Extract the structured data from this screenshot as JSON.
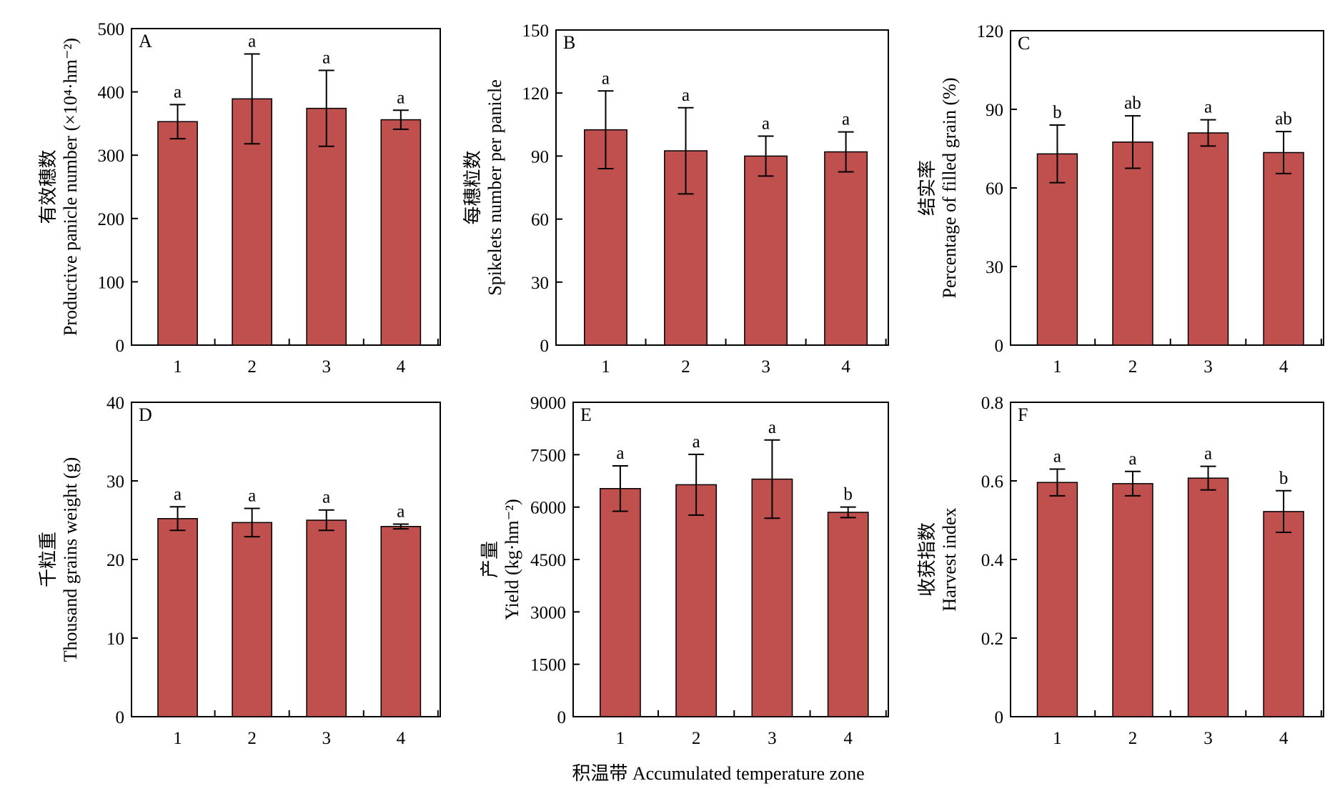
{
  "figure": {
    "shared_xlabel": "积温带 Accumulated temperature zone",
    "bar_color": "#C0504D"
  },
  "chart_data": [
    {
      "type": "bar",
      "panel_label": "A",
      "ylabel_cn": "有效穗数",
      "ylabel_en": "Productive panicle number (×10⁴·hm⁻²)",
      "categories": [
        "1",
        "2",
        "3",
        "4"
      ],
      "values": [
        353,
        389,
        374,
        356
      ],
      "error": [
        27,
        71,
        60,
        15
      ],
      "sig_labels": [
        "a",
        "a",
        "a",
        "a"
      ],
      "ylim": [
        0,
        500
      ],
      "yticks": [
        0,
        100,
        200,
        300,
        400,
        500
      ],
      "ytick_labels": [
        "0",
        "100",
        "200",
        "300",
        "400",
        "500"
      ]
    },
    {
      "type": "bar",
      "panel_label": "B",
      "ylabel_cn": "每穗粒数",
      "ylabel_en": "Spikelets number per panicle",
      "categories": [
        "1",
        "2",
        "3",
        "4"
      ],
      "values": [
        102.5,
        92.5,
        90,
        92
      ],
      "error": [
        18.5,
        20.5,
        9.5,
        9.5
      ],
      "sig_labels": [
        "a",
        "a",
        "a",
        "a"
      ],
      "ylim": [
        0,
        150
      ],
      "yticks": [
        0,
        30,
        60,
        90,
        120,
        150
      ],
      "ytick_labels": [
        "0",
        "30",
        "60",
        "90",
        "120",
        "150"
      ]
    },
    {
      "type": "bar",
      "panel_label": "C",
      "ylabel_cn": "结实率",
      "ylabel_en": "Percentage of filled grain (%)",
      "categories": [
        "1",
        "2",
        "3",
        "4"
      ],
      "values": [
        73,
        77.5,
        81,
        73.5
      ],
      "error": [
        11,
        10,
        5,
        8
      ],
      "sig_labels": [
        "b",
        "ab",
        "a",
        "ab"
      ],
      "ylim": [
        0,
        120
      ],
      "yticks": [
        0,
        30,
        60,
        90,
        120
      ],
      "ytick_labels": [
        "0",
        "30",
        "60",
        "90",
        "120"
      ]
    },
    {
      "type": "bar",
      "panel_label": "D",
      "ylabel_cn": "千粒重",
      "ylabel_en": "Thousand grains weight (g)",
      "categories": [
        "1",
        "2",
        "3",
        "4"
      ],
      "values": [
        25.2,
        24.7,
        25,
        24.2
      ],
      "error": [
        1.5,
        1.8,
        1.3,
        0.3
      ],
      "sig_labels": [
        "a",
        "a",
        "a",
        "a"
      ],
      "ylim": [
        0,
        40
      ],
      "yticks": [
        0,
        10,
        20,
        30,
        40
      ],
      "ytick_labels": [
        "0",
        "10",
        "20",
        "30",
        "40"
      ]
    },
    {
      "type": "bar",
      "panel_label": "E",
      "ylabel_cn": "产量",
      "ylabel_en": "Yield (kg·hm⁻²)",
      "categories": [
        "1",
        "2",
        "3",
        "4"
      ],
      "values": [
        6530,
        6640,
        6800,
        5850
      ],
      "error": [
        650,
        870,
        1120,
        150
      ],
      "sig_labels": [
        "a",
        "a",
        "a",
        "b"
      ],
      "ylim": [
        0,
        9000
      ],
      "yticks": [
        0,
        1500,
        3000,
        4500,
        6000,
        7500,
        9000
      ],
      "ytick_labels": [
        "0",
        "1500",
        "3000",
        "4500",
        "6000",
        "7500",
        "9000"
      ]
    },
    {
      "type": "bar",
      "panel_label": "F",
      "ylabel_cn": "收获指数",
      "ylabel_en": "Harvest index",
      "categories": [
        "1",
        "2",
        "3",
        "4"
      ],
      "values": [
        0.596,
        0.593,
        0.607,
        0.522
      ],
      "error": [
        0.034,
        0.031,
        0.03,
        0.053
      ],
      "sig_labels": [
        "a",
        "a",
        "a",
        "b"
      ],
      "ylim": [
        0,
        0.8
      ],
      "yticks": [
        0,
        0.2,
        0.4,
        0.6,
        0.8
      ],
      "ytick_labels": [
        "0",
        "0.2",
        "0.4",
        "0.6",
        "0.8"
      ]
    }
  ]
}
